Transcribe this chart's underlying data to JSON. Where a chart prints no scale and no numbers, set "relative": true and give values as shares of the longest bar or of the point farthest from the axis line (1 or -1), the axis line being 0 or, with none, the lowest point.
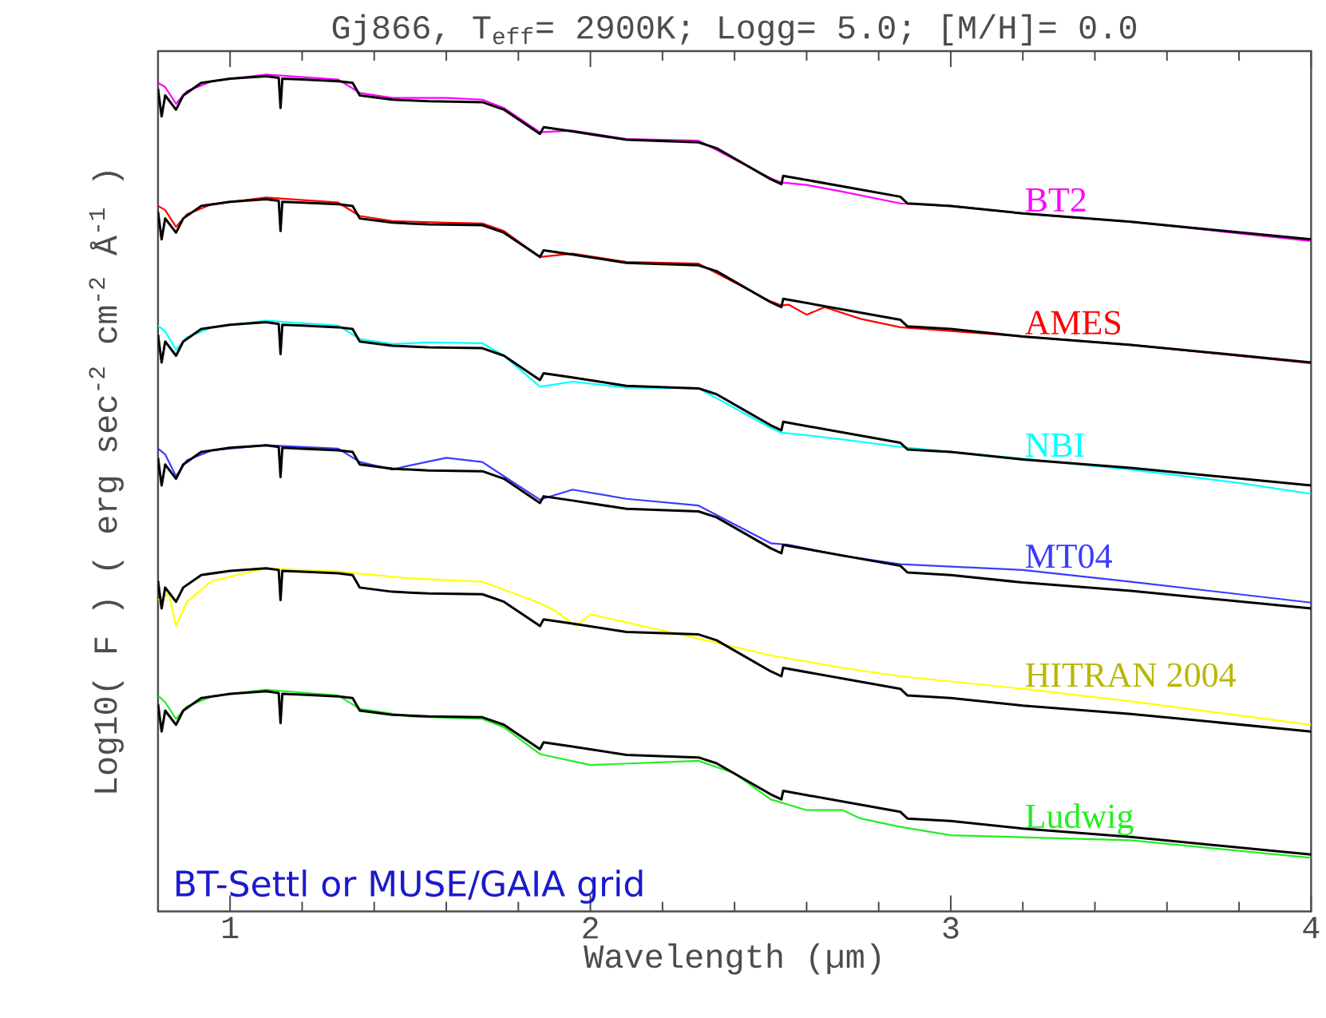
{
  "chart_data": {
    "type": "line",
    "title": "Gj866, T$_{eff}$= 2900K; Logg= 5.0; [M/H]= 0.0",
    "xlabel": "Wavelength (µm)",
    "ylabel": "Log10( F ) ( erg sec$^{-2}$ cm$^{-2}$ Å$^{-1}$ )",
    "relative": true,
    "xlim": [
      0.8,
      4.0
    ],
    "xticks": [
      1,
      2,
      3,
      4
    ],
    "annotations": [
      "BT-Settl or MUSE/GAIA grid"
    ],
    "x": [
      0.8,
      0.81,
      0.82,
      0.85,
      0.87,
      0.92,
      1.0,
      1.1,
      1.135,
      1.14,
      1.145,
      1.2,
      1.3,
      1.34,
      1.36,
      1.45,
      1.55,
      1.7,
      1.76,
      1.86,
      1.87,
      1.95,
      2.1,
      2.3,
      2.35,
      2.5,
      2.53,
      2.535,
      2.86,
      2.88,
      3.0,
      3.2,
      3.5,
      4.0
    ],
    "series": [
      {
        "name": "BT2",
        "color": "#ff00ff",
        "x": [
          0.8,
          0.82,
          0.85,
          0.88,
          0.95,
          1.1,
          1.3,
          1.36,
          1.45,
          1.6,
          1.7,
          1.76,
          1.86,
          1.95,
          2.1,
          2.3,
          2.5,
          2.53,
          2.6,
          2.7,
          2.86,
          3.0,
          3.2,
          3.5,
          4.0
        ],
        "values": [
          0.99,
          0.985,
          0.965,
          0.98,
          0.992,
          1.0,
          0.994,
          0.978,
          0.972,
          0.972,
          0.97,
          0.96,
          0.931,
          0.933,
          0.923,
          0.921,
          0.876,
          0.871,
          0.868,
          0.86,
          0.846,
          0.843,
          0.834,
          0.824,
          0.801
        ]
      },
      {
        "color": "#000000",
        "values": [
          0.983,
          0.95,
          0.975,
          0.958,
          0.975,
          0.99,
          0.995,
          0.998,
          0.996,
          0.96,
          0.995,
          0.994,
          0.992,
          0.99,
          0.975,
          0.97,
          0.968,
          0.967,
          0.958,
          0.929,
          0.937,
          0.932,
          0.922,
          0.919,
          0.912,
          0.875,
          0.869,
          0.879,
          0.854,
          0.846,
          0.843,
          0.834,
          0.824,
          0.803
        ]
      },
      {
        "name": "AMES",
        "color": "#ff0000",
        "x": [
          0.8,
          0.82,
          0.85,
          0.88,
          0.95,
          1.1,
          1.3,
          1.36,
          1.45,
          1.6,
          1.7,
          1.76,
          1.86,
          1.95,
          2.1,
          2.3,
          2.5,
          2.53,
          2.55,
          2.6,
          2.65,
          2.75,
          2.86,
          3.2,
          3.5,
          4.0
        ],
        "values": [
          0.843,
          0.838,
          0.818,
          0.833,
          0.845,
          0.853,
          0.847,
          0.831,
          0.825,
          0.823,
          0.822,
          0.813,
          0.782,
          0.786,
          0.776,
          0.774,
          0.729,
          0.724,
          0.725,
          0.713,
          0.722,
          0.708,
          0.698,
          0.687,
          0.677,
          0.655
        ]
      },
      {
        "color": "#000000",
        "values": [
          0.836,
          0.803,
          0.828,
          0.811,
          0.828,
          0.843,
          0.848,
          0.851,
          0.849,
          0.813,
          0.848,
          0.847,
          0.845,
          0.843,
          0.828,
          0.823,
          0.821,
          0.82,
          0.811,
          0.782,
          0.79,
          0.785,
          0.775,
          0.772,
          0.765,
          0.728,
          0.722,
          0.732,
          0.707,
          0.699,
          0.696,
          0.687,
          0.677,
          0.656
        ]
      },
      {
        "name": "NBI",
        "color": "#00ffff",
        "x": [
          0.8,
          0.82,
          0.85,
          0.88,
          0.95,
          1.1,
          1.3,
          1.36,
          1.45,
          1.55,
          1.7,
          1.76,
          1.86,
          1.95,
          2.1,
          2.3,
          2.5,
          2.53,
          2.6,
          2.7,
          2.86,
          3.0,
          3.2,
          3.5,
          3.8,
          4.0
        ],
        "values": [
          0.7,
          0.693,
          0.671,
          0.686,
          0.698,
          0.706,
          0.7,
          0.684,
          0.678,
          0.68,
          0.679,
          0.664,
          0.627,
          0.633,
          0.626,
          0.625,
          0.578,
          0.572,
          0.569,
          0.564,
          0.555,
          0.549,
          0.541,
          0.528,
          0.512,
          0.499
        ]
      },
      {
        "color": "#000000",
        "values": [
          0.689,
          0.656,
          0.681,
          0.664,
          0.681,
          0.696,
          0.701,
          0.704,
          0.702,
          0.666,
          0.701,
          0.7,
          0.698,
          0.696,
          0.681,
          0.676,
          0.674,
          0.673,
          0.664,
          0.635,
          0.643,
          0.638,
          0.628,
          0.625,
          0.618,
          0.581,
          0.575,
          0.585,
          0.56,
          0.552,
          0.549,
          0.54,
          0.53,
          0.509
        ]
      },
      {
        "name": "MT04",
        "color": "#3b3bff",
        "x": [
          0.8,
          0.82,
          0.85,
          0.88,
          0.95,
          1.1,
          1.3,
          1.36,
          1.45,
          1.5,
          1.6,
          1.7,
          1.76,
          1.86,
          1.95,
          2.1,
          2.3,
          2.5,
          2.55,
          2.7,
          2.86,
          3.0,
          3.2,
          3.5,
          4.0
        ],
        "values": [
          0.553,
          0.546,
          0.52,
          0.539,
          0.551,
          0.557,
          0.553,
          0.537,
          0.528,
          0.533,
          0.542,
          0.537,
          0.52,
          0.492,
          0.504,
          0.493,
          0.485,
          0.44,
          0.438,
          0.425,
          0.415,
          0.412,
          0.408,
          0.394,
          0.369
        ]
      },
      {
        "color": "#000000",
        "values": [
          0.542,
          0.509,
          0.534,
          0.517,
          0.534,
          0.549,
          0.554,
          0.557,
          0.555,
          0.519,
          0.554,
          0.553,
          0.551,
          0.549,
          0.534,
          0.529,
          0.527,
          0.526,
          0.517,
          0.488,
          0.496,
          0.491,
          0.481,
          0.478,
          0.471,
          0.434,
          0.428,
          0.438,
          0.413,
          0.405,
          0.402,
          0.393,
          0.383,
          0.362
        ]
      },
      {
        "name": "HITRAN 2004",
        "color": "#ffff00",
        "x": [
          0.8,
          0.83,
          0.85,
          0.88,
          0.95,
          1.1,
          1.3,
          1.4,
          1.5,
          1.7,
          1.85,
          1.9,
          1.96,
          2.0,
          2.3,
          2.5,
          2.7,
          2.86,
          3.2,
          3.5,
          4.0
        ],
        "values": [
          0.372,
          0.38,
          0.341,
          0.37,
          0.395,
          0.41,
          0.406,
          0.402,
          0.398,
          0.394,
          0.37,
          0.36,
          0.341,
          0.355,
          0.326,
          0.306,
          0.291,
          0.281,
          0.266,
          0.251,
          0.223
        ]
      },
      {
        "color": "#000000",
        "values": [
          0.395,
          0.362,
          0.387,
          0.37,
          0.387,
          0.402,
          0.407,
          0.41,
          0.408,
          0.372,
          0.407,
          0.406,
          0.404,
          0.402,
          0.387,
          0.382,
          0.38,
          0.379,
          0.37,
          0.341,
          0.349,
          0.344,
          0.334,
          0.331,
          0.324,
          0.287,
          0.281,
          0.291,
          0.266,
          0.258,
          0.255,
          0.246,
          0.236,
          0.215
        ]
      },
      {
        "name": "Ludwig",
        "color": "#22ee22",
        "x": [
          0.8,
          0.82,
          0.85,
          0.88,
          0.95,
          1.1,
          1.3,
          1.36,
          1.5,
          1.7,
          1.76,
          1.86,
          2.0,
          2.3,
          2.4,
          2.5,
          2.6,
          2.7,
          2.75,
          2.86,
          3.0,
          3.5,
          4.0
        ],
        "values": [
          0.258,
          0.25,
          0.23,
          0.245,
          0.257,
          0.265,
          0.258,
          0.242,
          0.233,
          0.23,
          0.22,
          0.188,
          0.175,
          0.18,
          0.165,
          0.134,
          0.121,
          0.121,
          0.111,
          0.101,
          0.091,
          0.085,
          0.064
        ]
      },
      {
        "color": "#000000",
        "values": [
          0.248,
          0.215,
          0.24,
          0.223,
          0.24,
          0.255,
          0.26,
          0.263,
          0.261,
          0.225,
          0.26,
          0.259,
          0.257,
          0.255,
          0.24,
          0.235,
          0.233,
          0.232,
          0.223,
          0.194,
          0.202,
          0.197,
          0.187,
          0.184,
          0.177,
          0.14,
          0.134,
          0.144,
          0.119,
          0.111,
          0.108,
          0.099,
          0.089,
          0.068
        ]
      }
    ]
  }
}
